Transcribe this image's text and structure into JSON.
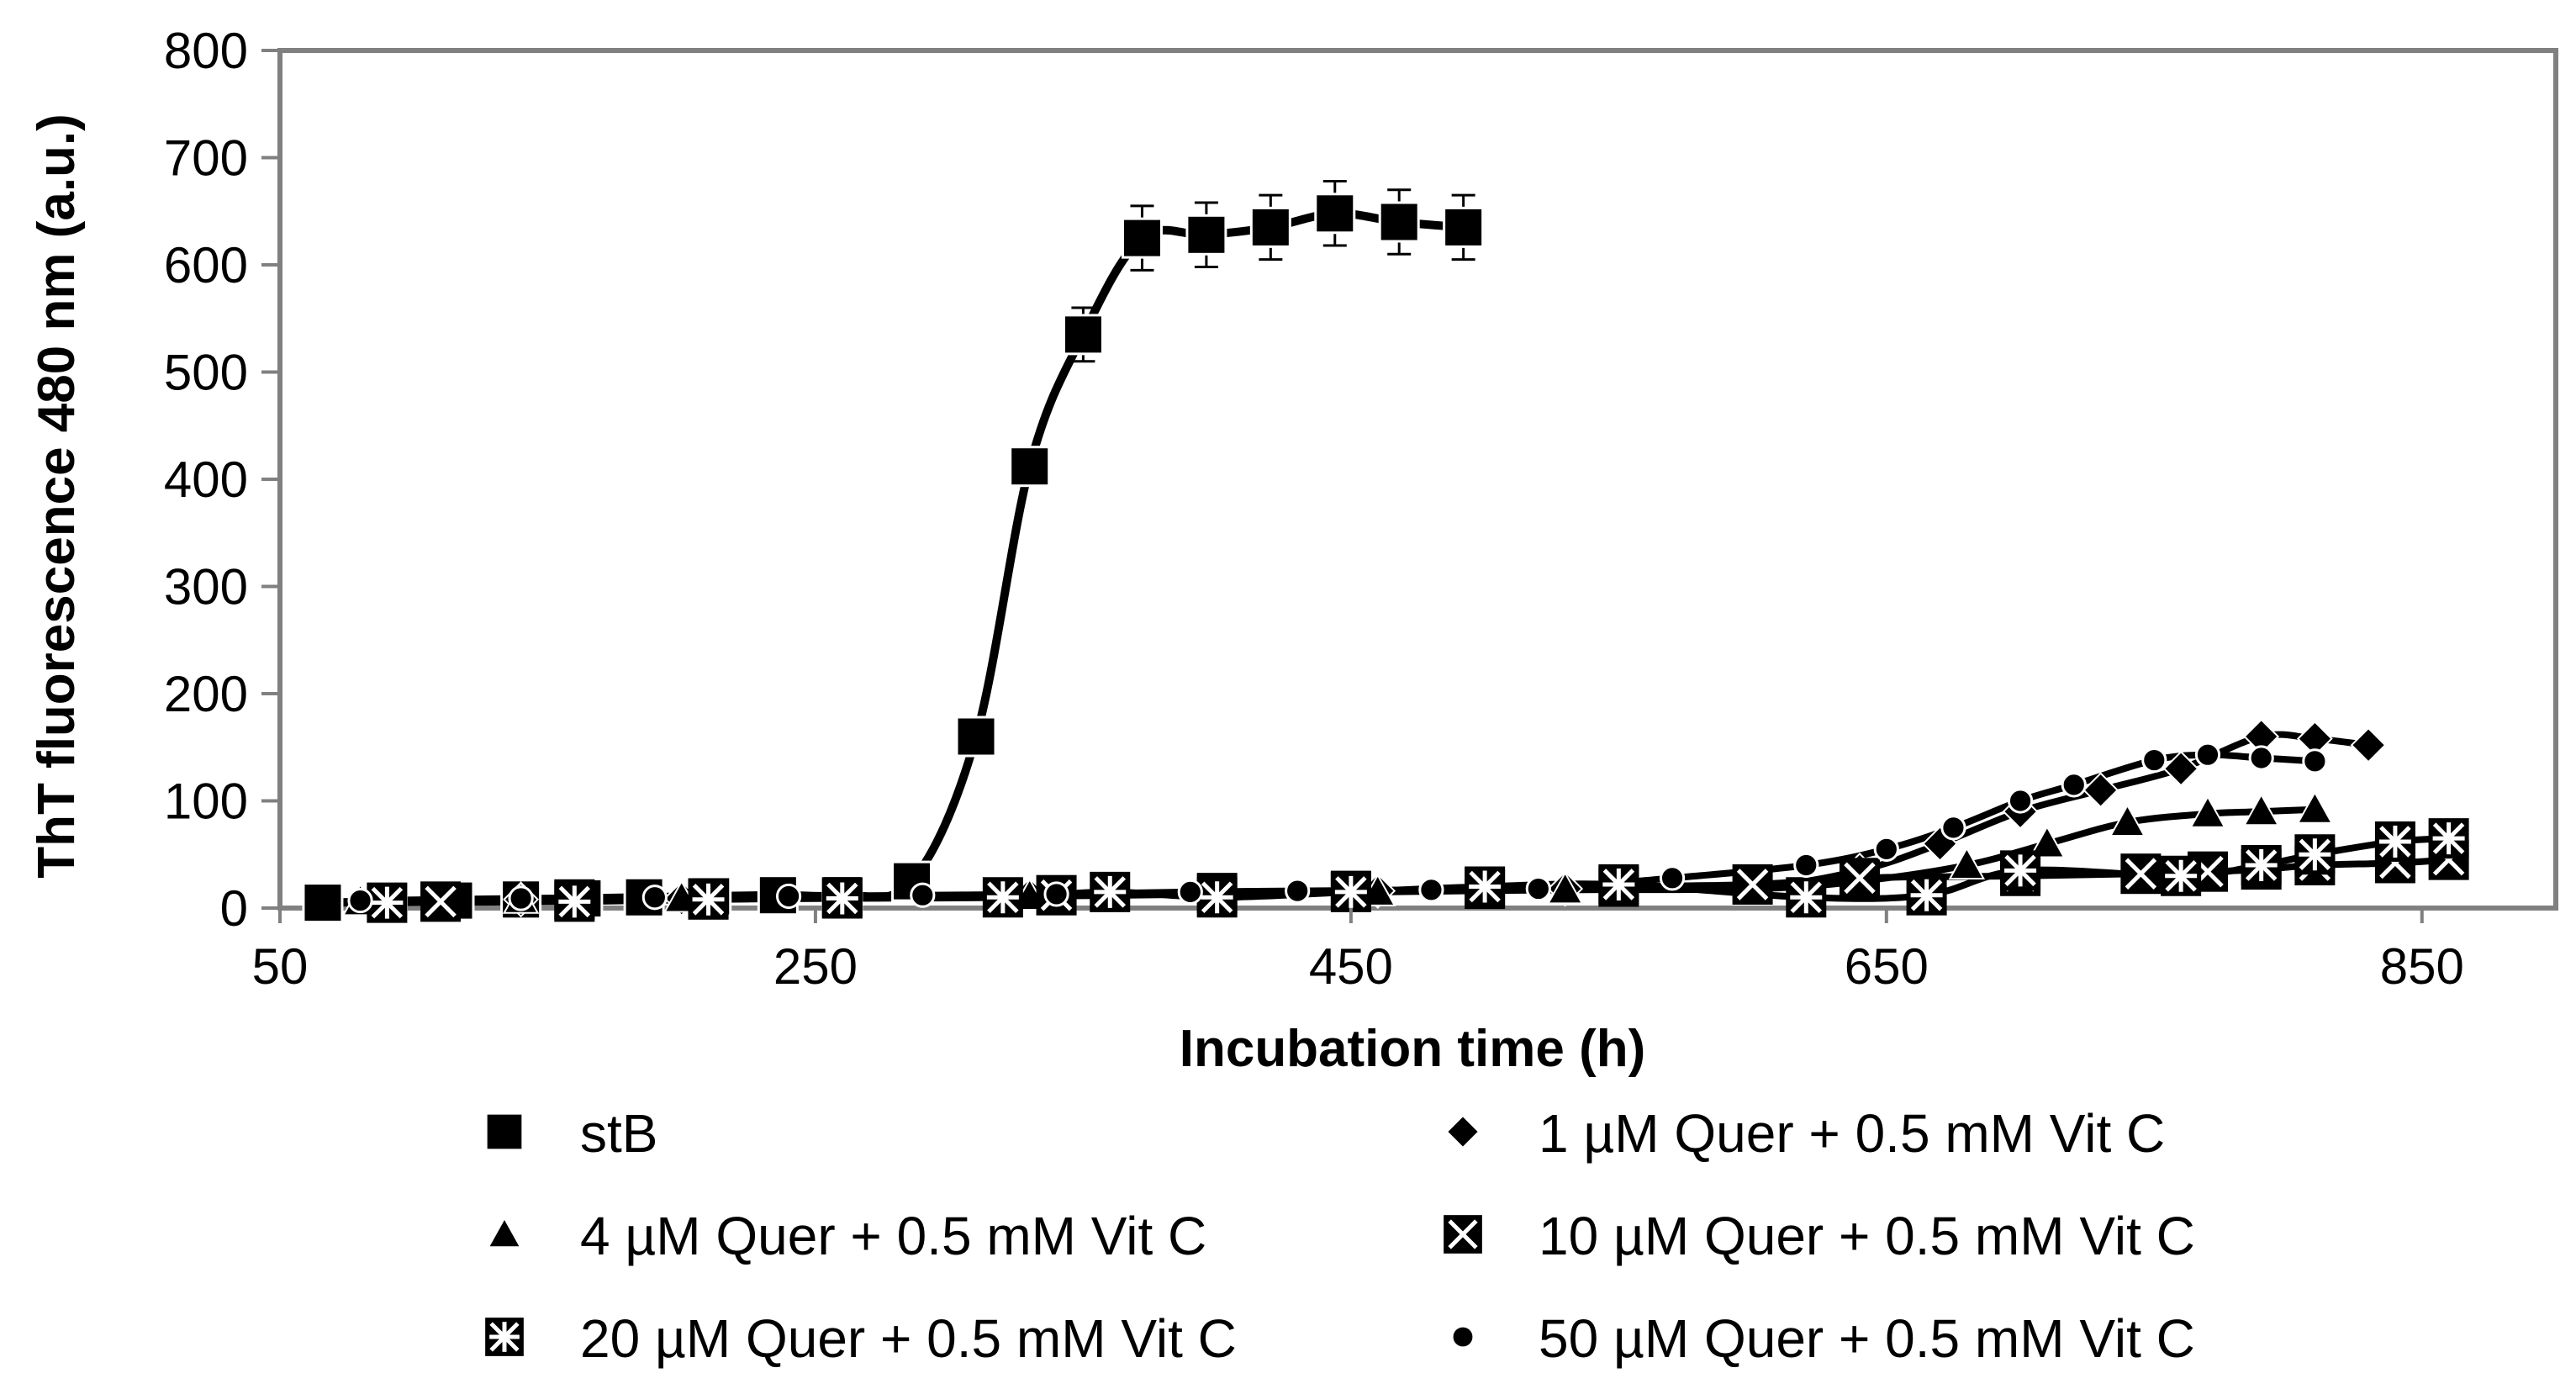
{
  "chart_data": {
    "type": "line",
    "title": "",
    "xlabel": "Incubation time (h)",
    "ylabel": "ThT fluorescence 480 nm (a.u.)",
    "xlim": [
      50,
      900
    ],
    "ylim": [
      0,
      800
    ],
    "x_ticks": [
      "50",
      "250",
      "450",
      "650",
      "850"
    ],
    "y_ticks": [
      "0",
      "100",
      "200",
      "300",
      "400",
      "500",
      "600",
      "700",
      "800"
    ],
    "grid": false,
    "legend_position": "bottom",
    "series": [
      {
        "name": "stB",
        "marker": "square",
        "x": [
          66,
          90,
          115,
          140,
          163,
          186,
          211,
          236,
          260,
          286,
          310,
          330,
          350,
          372,
          396,
          420,
          444,
          468,
          492
        ],
        "y": [
          5,
          6,
          7,
          8,
          9,
          10,
          11,
          12,
          12,
          25,
          160,
          412,
          535,
          625,
          628,
          635,
          648,
          640,
          635
        ],
        "error": [
          0,
          0,
          0,
          0,
          0,
          0,
          0,
          0,
          0,
          0,
          0,
          0,
          25,
          30,
          30,
          30,
          30,
          30,
          30
        ]
      },
      {
        "name": "1 µM Quer + 0.5 mM Vit C",
        "marker": "diamond",
        "x": [
          90,
          140,
          200,
          260,
          330,
          400,
          460,
          530,
          600,
          640,
          670,
          700,
          730,
          760,
          790,
          810,
          830
        ],
        "y": [
          6,
          8,
          9,
          10,
          12,
          14,
          16,
          18,
          20,
          35,
          60,
          90,
          110,
          130,
          160,
          158,
          152
        ]
      },
      {
        "name": "4 µM Quer + 0.5 mM Vit C",
        "marker": "triangle",
        "x": [
          80,
          140,
          200,
          260,
          330,
          400,
          460,
          530,
          600,
          640,
          680,
          710,
          740,
          770,
          790,
          810
        ],
        "y": [
          6,
          8,
          9,
          10,
          11,
          13,
          15,
          17,
          18,
          25,
          40,
          60,
          80,
          88,
          90,
          92
        ]
      },
      {
        "name": "10 µM Quer + 0.5 mM Vit C",
        "marker": "box-x",
        "x": [
          110,
          160,
          210,
          260,
          340,
          400,
          450,
          500,
          550,
          600,
          640,
          700,
          745,
          770,
          790,
          810,
          840,
          860
        ],
        "y": [
          6,
          8,
          9,
          10,
          12,
          14,
          16,
          18,
          20,
          22,
          28,
          30,
          32,
          34,
          36,
          40,
          42,
          45
        ]
      },
      {
        "name": "20 µM Quer + 0.5 mM Vit C",
        "marker": "box-plus",
        "x": [
          90,
          160,
          210,
          260,
          320,
          360,
          400,
          450,
          500,
          550,
          620,
          665,
          700,
          760,
          790,
          810,
          840,
          860
        ],
        "y": [
          5,
          6,
          8,
          9,
          10,
          15,
          10,
          15,
          20,
          22,
          10,
          12,
          35,
          30,
          40,
          50,
          62,
          65
        ]
      },
      {
        "name": "50 µM Quer + 0.5 mM Vit C",
        "marker": "circle",
        "x": [
          80,
          140,
          190,
          240,
          290,
          340,
          390,
          430,
          480,
          520,
          570,
          620,
          650,
          675,
          700,
          720,
          750,
          770,
          790,
          810
        ],
        "y": [
          7,
          9,
          10,
          11,
          12,
          13,
          15,
          16,
          17,
          18,
          28,
          40,
          55,
          75,
          100,
          115,
          138,
          143,
          140,
          137
        ]
      }
    ],
    "legend": [
      "stB",
      "1 µM Quer + 0.5 mM Vit C",
      "4 µM Quer + 0.5 mM Vit C",
      "10 µM Quer + 0.5 mM Vit C",
      "20 µM Quer + 0.5 mM Vit C",
      "50 µM Quer + 0.5 mM Vit C"
    ]
  },
  "colors": {
    "marker": "#000000",
    "frame": "#808080",
    "curve": "#000000"
  }
}
